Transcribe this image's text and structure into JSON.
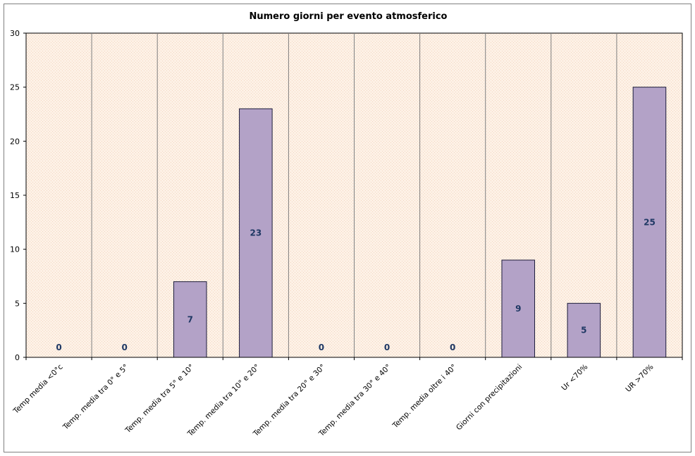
{
  "chart_data": {
    "type": "bar",
    "title": "Numero giorni per evento atmosferico",
    "categories": [
      "Temp media <0°c",
      "Temp. media tra 0° e 5°",
      "Temp. media tra 5° e 10°",
      "Temp. media tra 10° e 20°",
      "Temp. media tra 20° e 30°",
      "Temp. media tra 30° e 40°",
      "Temp. media oltre i 40°",
      "Giorni con precipitazioni",
      "Ur <70%",
      "UR >70%"
    ],
    "values": [
      0,
      0,
      7,
      23,
      0,
      0,
      0,
      9,
      5,
      25
    ],
    "data_labels": [
      "0",
      "0",
      "7",
      "23",
      "0",
      "0",
      "0",
      "9",
      "5",
      "25"
    ],
    "yticks": [
      "0",
      "5",
      "10",
      "15",
      "20",
      "25",
      "30"
    ],
    "ylim": [
      0,
      30
    ],
    "xlabel": "",
    "ylabel": "",
    "grid": "vertical separators between categories",
    "legend": "none",
    "colors": {
      "bar_fill": "#b3a2c7",
      "bar_stroke": "#1c1c3a",
      "plot_bg": "#fdf1e6",
      "label_color": "#1f3864"
    }
  }
}
